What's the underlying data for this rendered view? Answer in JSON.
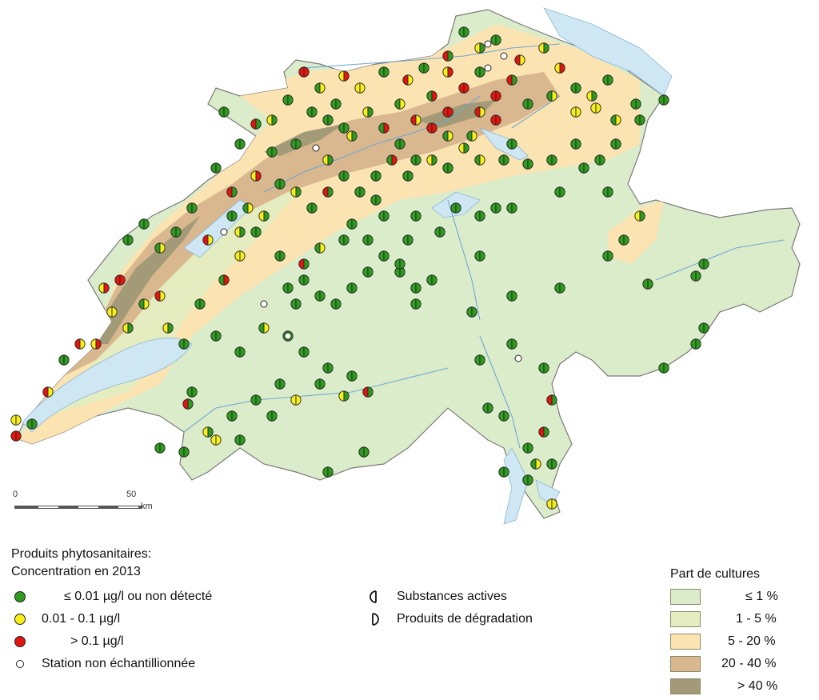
{
  "map": {
    "colors": {
      "land_base": "#dbeccb",
      "cult_1_5": "#e5ecbf",
      "cult_5_20": "#fbe3b2",
      "cult_20_40": "#d9b78f",
      "cult_40": "#a39a77",
      "water": "#cfe6f3",
      "river": "#6fa8cf",
      "border": "#7a7a7a",
      "green": "#2e9a1e",
      "yellow": "#f6ef1a",
      "red": "#e3150f"
    }
  },
  "scale_bar": {
    "label_0": "0",
    "label_50": "50",
    "unit": "km"
  },
  "legend": {
    "title_line1": "Produits phytosanitaires:",
    "title_line2": "Concentration en 2013",
    "items": [
      {
        "label": "≤ 0.01 µg/l ou non détecté",
        "color": "#2e9a1e"
      },
      {
        "label": "0.01 - 0.1 µg/l",
        "color": "#f6ef1a"
      },
      {
        "label": "> 0.1 µg/l",
        "color": "#e3150f"
      },
      {
        "label": "Station non échantillionnée",
        "color": "#ffffff"
      }
    ],
    "halves": [
      {
        "label": "Substances actives",
        "icon": "left-half-circle-icon"
      },
      {
        "label": "Produits de dégradation",
        "icon": "right-half-circle-icon"
      }
    ],
    "crops_title": "Part de cultures",
    "crops": [
      {
        "label": "≤ 1 %",
        "color": "#dbeccb"
      },
      {
        "label": "1 - 5 %",
        "color": "#e5ecbf"
      },
      {
        "label": "5 - 20 %",
        "color": "#fbe3b2"
      },
      {
        "label": "20 - 40 %",
        "color": "#d9b78f"
      },
      {
        "label": "> 40 %",
        "color": "#a39a77"
      }
    ]
  }
}
